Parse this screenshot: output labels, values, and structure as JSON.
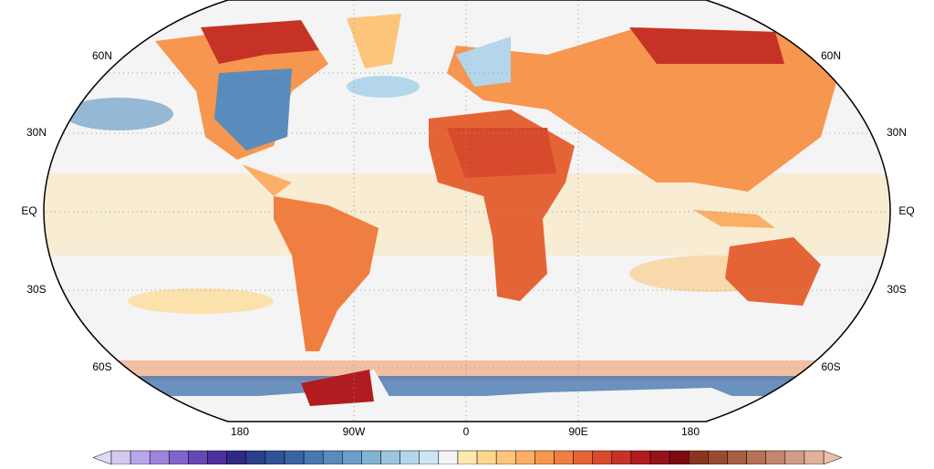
{
  "map": {
    "lat_labels": [
      "60N",
      "30N",
      "EQ",
      "30S",
      "60S"
    ],
    "lon_labels": [
      "180",
      "90W",
      "0",
      "90E",
      "180"
    ],
    "colorbar": {
      "low_color": "#e2d9f7",
      "high_color": "#eebfa8",
      "colors": [
        "#d4c8f0",
        "#b9a6ea",
        "#9d84dc",
        "#8064cc",
        "#6648b4",
        "#4e2f9c",
        "#2e2a84",
        "#2b3f8c",
        "#2e5396",
        "#3a65a4",
        "#4978b0",
        "#5a8bbd",
        "#6c9ec8",
        "#82b2d4",
        "#9ac4e0",
        "#b3d6eb",
        "#cce6f4",
        "#f4f4f4",
        "#fde9b0",
        "#fdd88c",
        "#fcc57a",
        "#fbae66",
        "#f7964f",
        "#f07e40",
        "#e56436",
        "#d84a2c",
        "#c73226",
        "#b01c1f",
        "#961219",
        "#7c0b12",
        "#8b3520",
        "#9a4a30",
        "#a85e42",
        "#b67156",
        "#c4866c",
        "#d29b84",
        "#e0b09c"
      ]
    }
  }
}
